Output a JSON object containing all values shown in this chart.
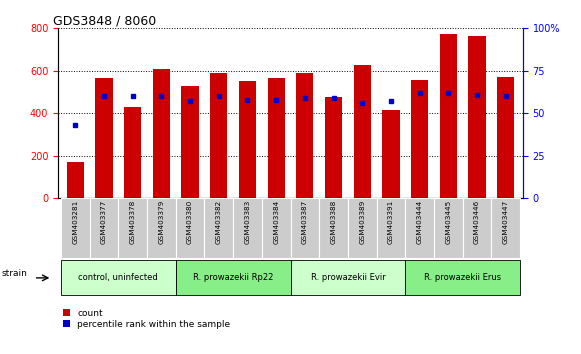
{
  "title": "GDS3848 / 8060",
  "samples": [
    "GSM403281",
    "GSM403377",
    "GSM403378",
    "GSM403379",
    "GSM403380",
    "GSM403382",
    "GSM403383",
    "GSM403384",
    "GSM403387",
    "GSM403388",
    "GSM403389",
    "GSM403391",
    "GSM403444",
    "GSM403445",
    "GSM403446",
    "GSM403447"
  ],
  "counts": [
    170,
    565,
    430,
    610,
    530,
    590,
    550,
    565,
    590,
    475,
    625,
    415,
    555,
    775,
    765,
    570
  ],
  "percentiles": [
    43,
    60,
    60,
    60,
    57,
    60,
    58,
    58,
    59,
    59,
    56,
    57,
    62,
    62,
    61,
    60
  ],
  "group_labels": [
    "control, uninfected",
    "R. prowazekii Rp22",
    "R. prowazekii Evir",
    "R. prowazekii Erus"
  ],
  "group_ranges": [
    [
      0,
      4
    ],
    [
      4,
      8
    ],
    [
      8,
      12
    ],
    [
      12,
      16
    ]
  ],
  "group_color_light": "#ccffcc",
  "group_color_dark": "#66dd66",
  "bar_color": "#CC0000",
  "dot_color": "#0000CC",
  "left_ylim": [
    0,
    800
  ],
  "right_ylim": [
    0,
    100
  ],
  "left_yticks": [
    0,
    200,
    400,
    600,
    800
  ],
  "right_yticks": [
    0,
    25,
    50,
    75,
    100
  ],
  "label_bg": "#cccccc",
  "plot_bg": "#ffffff"
}
